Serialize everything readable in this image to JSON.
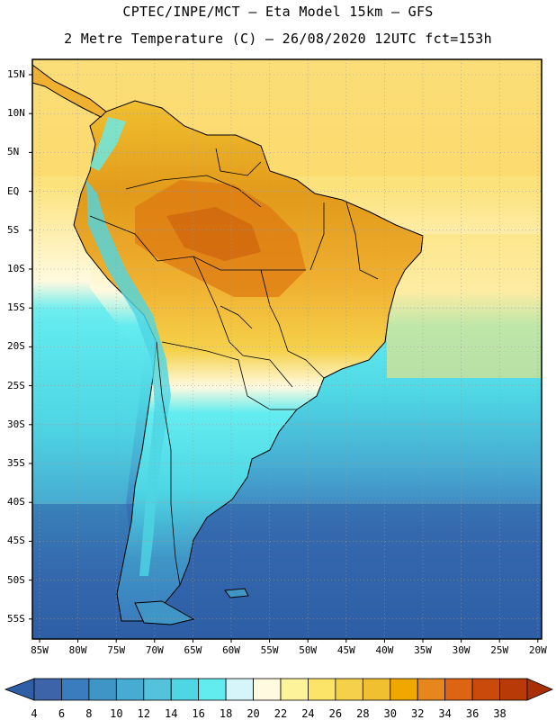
{
  "header": {
    "title_line1": "CPTEC/INPE/MCT –  Eta Model 15km – GFS",
    "title_line2": "2 Metre Temperature (C) – 26/08/2020 12UTC fct=153h"
  },
  "map": {
    "lat_labels": [
      "15N",
      "10N",
      "5N",
      "EQ",
      "5S",
      "10S",
      "15S",
      "20S",
      "25S",
      "30S",
      "35S",
      "40S",
      "45S",
      "50S",
      "55S"
    ],
    "lon_labels": [
      "85W",
      "80W",
      "75W",
      "70W",
      "65W",
      "60W",
      "55W",
      "50W",
      "45W",
      "40W",
      "35W",
      "30W",
      "25W",
      "20W"
    ]
  },
  "colorbar": {
    "labels": [
      "4",
      "6",
      "8",
      "10",
      "12",
      "14",
      "16",
      "18",
      "20",
      "22",
      "24",
      "26",
      "28",
      "30",
      "32",
      "34",
      "36",
      "38"
    ],
    "colors": [
      "#3d64a8",
      "#3a7dbe",
      "#3f96c6",
      "#47acd2",
      "#55c2db",
      "#4ed6e4",
      "#63ecf0",
      "#d5f5fb",
      "#fffae0",
      "#fdf39a",
      "#fbe468",
      "#f5d14a",
      "#f0c030",
      "#f0a800",
      "#e7861c",
      "#dd6412",
      "#c94a0a",
      "#b83a06"
    ]
  },
  "palette": {
    "ocean_tropical": "#fce27a",
    "ocean_cold": "#2e5fa6",
    "land_hot": "#e29a1a"
  }
}
